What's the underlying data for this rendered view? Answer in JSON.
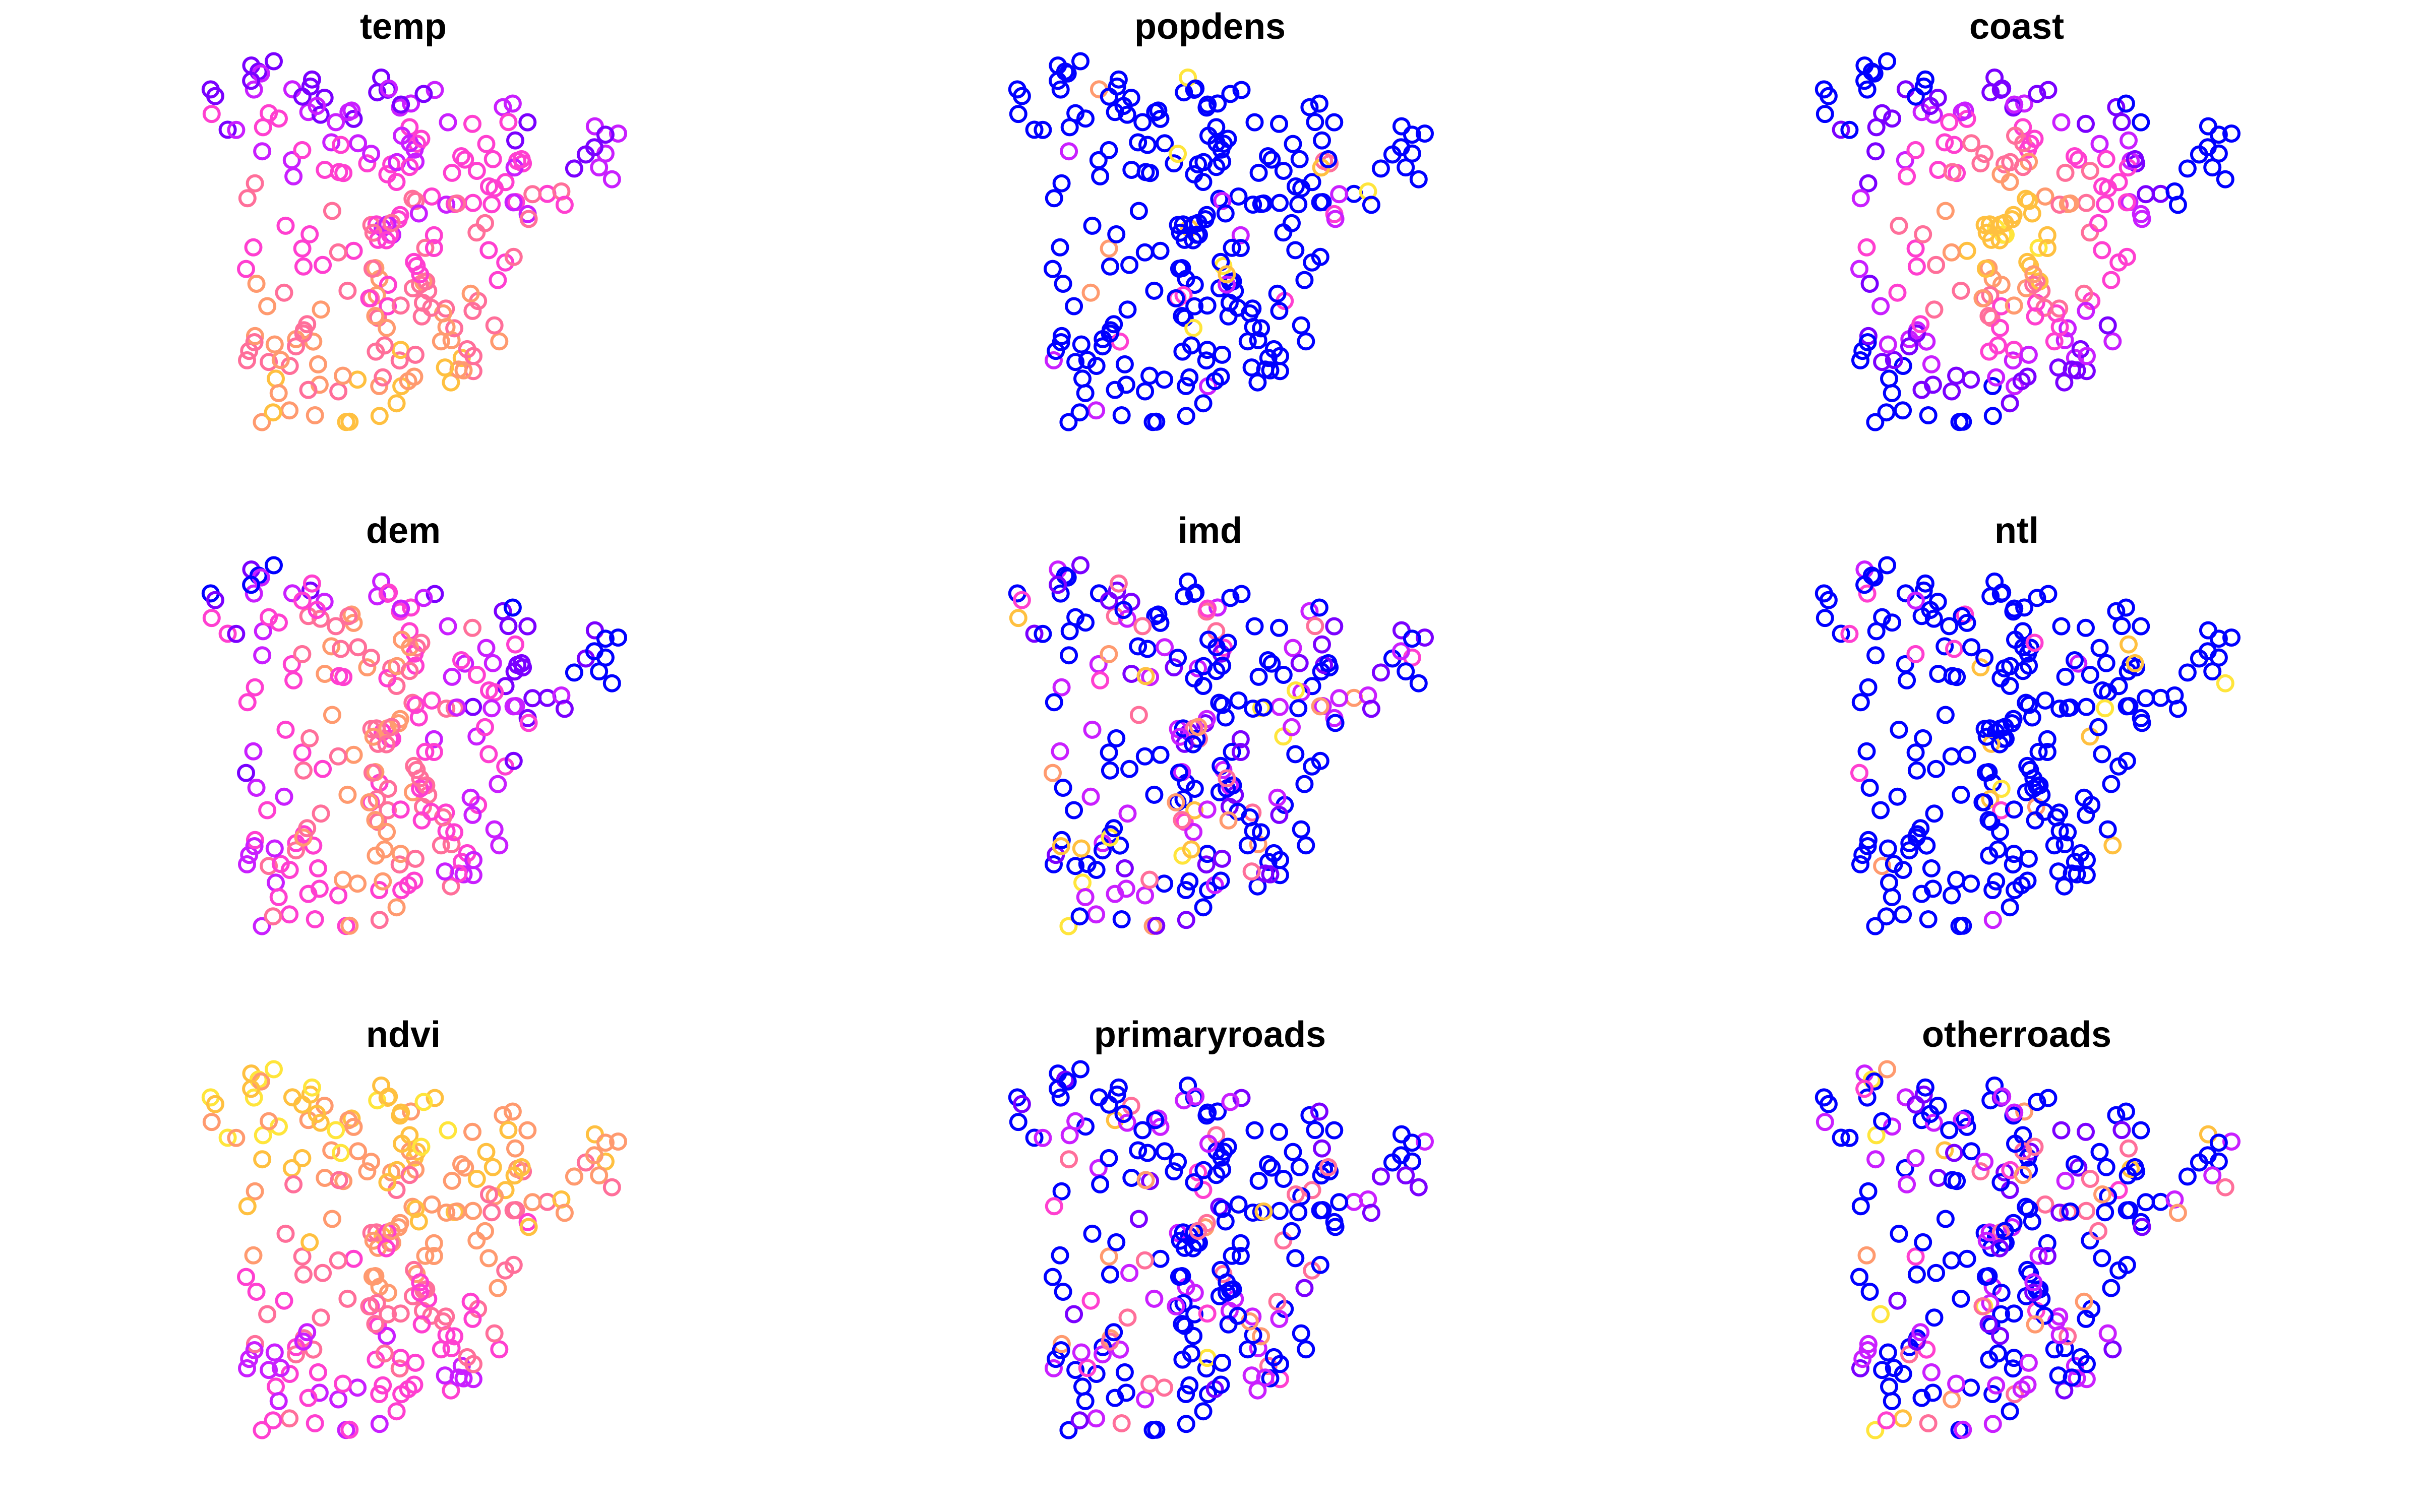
{
  "figure": {
    "panels": [
      {
        "title": "temp",
        "pattern": "temp"
      },
      {
        "title": "popdens",
        "pattern": "lowblue"
      },
      {
        "title": "coast",
        "pattern": "coast"
      },
      {
        "title": "dem",
        "pattern": "dem"
      },
      {
        "title": "imd",
        "pattern": "mixed"
      },
      {
        "title": "ntl",
        "pattern": "lowblue"
      },
      {
        "title": "ndvi",
        "pattern": "ndvi"
      },
      {
        "title": "primaryroads",
        "pattern": "mixed"
      },
      {
        "title": "otherroads",
        "pattern": "mixed"
      }
    ],
    "palette": [
      "#0000ff",
      "#7a00ff",
      "#c91fff",
      "#ff3fd0",
      "#ff6f9a",
      "#ff9a6f",
      "#ffc040",
      "#ffe53b"
    ],
    "marker": "open-circle"
  }
}
